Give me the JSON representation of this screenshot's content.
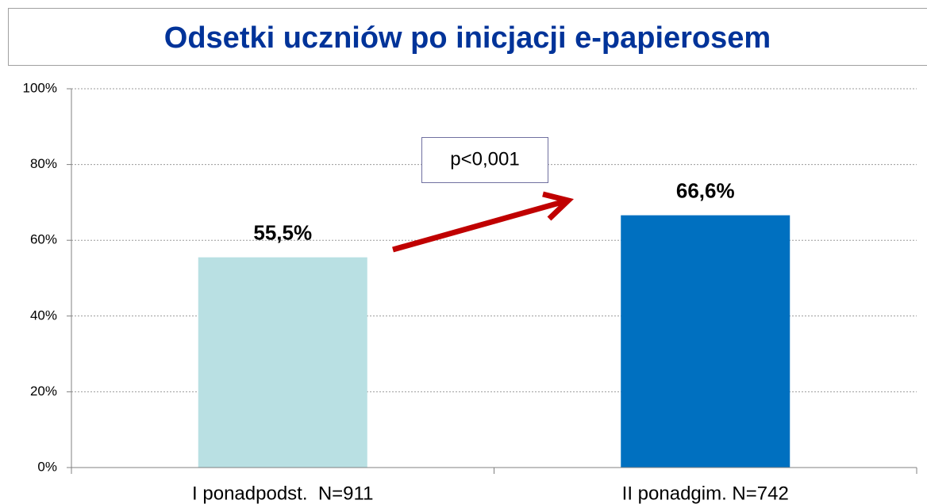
{
  "chart_data": {
    "type": "bar",
    "title": "Odsetki uczniów po inicjacji e-papierosem",
    "categories": [
      "I ponadpodst.  N=911",
      "II ponadgim. N=742"
    ],
    "values": [
      55.5,
      66.6
    ],
    "value_labels": [
      "55,5%",
      "66,6%"
    ],
    "colors": [
      "#b9e0e3",
      "#0070c0"
    ],
    "ylim": [
      0,
      100
    ],
    "yticks": [
      {
        "value": 0,
        "label": "0%"
      },
      {
        "value": 20,
        "label": "20%"
      },
      {
        "value": 40,
        "label": "40%"
      },
      {
        "value": 60,
        "label": "60%"
      },
      {
        "value": 80,
        "label": "80%"
      },
      {
        "value": 100,
        "label": "100%"
      }
    ],
    "grid": true,
    "annotation": "p<0,001"
  }
}
